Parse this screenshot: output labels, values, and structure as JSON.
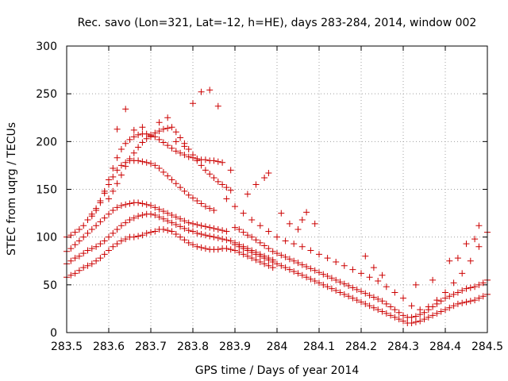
{
  "chart_data": {
    "type": "scatter",
    "title": "Rec. savo (Lon=321, Lat=-12, h=HE), days 283-284, 2014, window 002",
    "xlabel": "GPS time / Days of year 2014",
    "ylabel": "STEC from uqrg / TECUs",
    "xlim": [
      283.5,
      284.5
    ],
    "ylim": [
      0,
      300
    ],
    "x_ticks": [
      "283.5",
      "283.6",
      "283.7",
      "283.8",
      "283.9",
      "284",
      "284.1",
      "284.2",
      "284.3",
      "284.4",
      "284.5"
    ],
    "y_ticks": [
      "0",
      "50",
      "100",
      "150",
      "200",
      "250",
      "300"
    ],
    "grid": true,
    "marker": "+",
    "color": "#cc0000",
    "series": [
      {
        "x": [
          283.5,
          283.51,
          283.52,
          283.53,
          283.54,
          283.55,
          283.56,
          283.57,
          283.58,
          283.59,
          283.6,
          283.61,
          283.62,
          283.63,
          283.64,
          283.65,
          283.66,
          283.67,
          283.68,
          283.69,
          283.7,
          283.71,
          283.72,
          283.73,
          283.74,
          283.75,
          283.76,
          283.77,
          283.78,
          283.79,
          283.8,
          283.81,
          283.82,
          283.83,
          283.84,
          283.85,
          283.86,
          283.87,
          283.88,
          283.89,
          283.9,
          283.91,
          283.92,
          283.93,
          283.94,
          283.95,
          283.96,
          283.97,
          283.98,
          283.99
        ],
        "y": [
          58,
          60,
          62,
          65,
          68,
          70,
          72,
          75,
          78,
          82,
          86,
          90,
          93,
          96,
          98,
          100,
          100,
          101,
          102,
          104,
          105,
          106,
          108,
          108,
          107,
          106,
          103,
          100,
          97,
          94,
          92,
          90,
          89,
          88,
          87,
          87,
          87,
          88,
          88,
          87,
          86,
          84,
          82,
          80,
          78,
          76,
          74,
          72,
          70,
          68
        ]
      },
      {
        "x": [
          283.5,
          283.51,
          283.52,
          283.53,
          283.54,
          283.55,
          283.56,
          283.57,
          283.58,
          283.59,
          283.6,
          283.61,
          283.62,
          283.63,
          283.64,
          283.65,
          283.66,
          283.67,
          283.68,
          283.69,
          283.7,
          283.71,
          283.72,
          283.73,
          283.74,
          283.75,
          283.76,
          283.77,
          283.78,
          283.79,
          283.8,
          283.81,
          283.82,
          283.83,
          283.84,
          283.85,
          283.86,
          283.87,
          283.88,
          283.89,
          283.9,
          283.91,
          283.92,
          283.93,
          283.94,
          283.95,
          283.96,
          283.97,
          283.98,
          283.99
        ],
        "y": [
          72,
          75,
          78,
          80,
          83,
          86,
          88,
          90,
          93,
          96,
          100,
          104,
          108,
          112,
          115,
          118,
          120,
          122,
          123,
          124,
          124,
          123,
          121,
          119,
          117,
          115,
          113,
          111,
          109,
          107,
          106,
          104,
          103,
          102,
          101,
          100,
          99,
          98,
          97,
          96,
          94,
          92,
          90,
          88,
          86,
          84,
          82,
          80,
          78,
          76
        ]
      },
      {
        "x": [
          283.5,
          283.51,
          283.52,
          283.53,
          283.54,
          283.55,
          283.56,
          283.57,
          283.58,
          283.59,
          283.6,
          283.61,
          283.62,
          283.63,
          283.64,
          283.65,
          283.66,
          283.67,
          283.68,
          283.69,
          283.7,
          283.71,
          283.72,
          283.73,
          283.74,
          283.75,
          283.76,
          283.77,
          283.78,
          283.79,
          283.8,
          283.81,
          283.82,
          283.83,
          283.84,
          283.85,
          283.86,
          283.87,
          283.88
        ],
        "y": [
          85,
          88,
          92,
          96,
          100,
          104,
          108,
          112,
          116,
          120,
          124,
          128,
          131,
          133,
          134,
          135,
          136,
          136,
          135,
          134,
          133,
          131,
          129,
          127,
          125,
          123,
          121,
          119,
          117,
          115,
          114,
          113,
          112,
          111,
          110,
          109,
          108,
          107,
          106
        ]
      },
      {
        "x": [
          283.5,
          283.51,
          283.52,
          283.53,
          283.54,
          283.55,
          283.56,
          283.57,
          283.58,
          283.59,
          283.6,
          283.61,
          283.62,
          283.63,
          283.64,
          283.65,
          283.66,
          283.67,
          283.68,
          283.69,
          283.7,
          283.71,
          283.72,
          283.73,
          283.74,
          283.75,
          283.76,
          283.77,
          283.78,
          283.79,
          283.8,
          283.81,
          283.82,
          283.83,
          283.84,
          283.85
        ],
        "y": [
          100,
          102,
          105,
          108,
          112,
          118,
          124,
          130,
          138,
          146,
          155,
          163,
          170,
          175,
          178,
          180,
          180,
          180,
          179,
          178,
          177,
          175,
          172,
          168,
          164,
          160,
          156,
          152,
          148,
          144,
          141,
          138,
          135,
          132,
          130,
          128
        ]
      },
      {
        "x": [
          283.55,
          283.56,
          283.57,
          283.58,
          283.59,
          283.6,
          283.61,
          283.62,
          283.63,
          283.64,
          283.65,
          283.66,
          283.67,
          283.68,
          283.69,
          283.7,
          283.71,
          283.72,
          283.73,
          283.74,
          283.75,
          283.76,
          283.77,
          283.78,
          283.79,
          283.8,
          283.81,
          283.82,
          283.83,
          283.84,
          283.85,
          283.86,
          283.87
        ],
        "y": [
          118,
          122,
          128,
          136,
          148,
          160,
          172,
          183,
          192,
          198,
          202,
          205,
          207,
          208,
          208,
          207,
          205,
          202,
          199,
          196,
          193,
          190,
          188,
          186,
          184,
          183,
          182,
          181,
          181,
          180,
          180,
          179,
          178
        ]
      },
      {
        "x": [
          283.6,
          283.61,
          283.62,
          283.63,
          283.64,
          283.65,
          283.66,
          283.67,
          283.68,
          283.69,
          283.7,
          283.71,
          283.72,
          283.73,
          283.74,
          283.75,
          283.76,
          283.77,
          283.78,
          283.79,
          283.8,
          283.81,
          283.82,
          283.83,
          283.84,
          283.85,
          283.86,
          283.87,
          283.88,
          283.89
        ],
        "y": [
          140,
          148,
          156,
          165,
          174,
          182,
          188,
          194,
          199,
          203,
          206,
          209,
          211,
          213,
          214,
          215,
          210,
          204,
          198,
          192,
          186,
          180,
          175,
          170,
          166,
          162,
          158,
          155,
          152,
          149
        ]
      },
      {
        "x": [
          283.62,
          283.64,
          283.66,
          283.68,
          283.7,
          283.72,
          283.74,
          283.76,
          283.78,
          283.8,
          283.82,
          283.84,
          283.86
        ],
        "y": [
          213,
          234,
          212,
          215,
          205,
          220,
          225,
          200,
          195,
          240,
          252,
          254,
          237
        ]
      },
      {
        "x": [
          283.9,
          283.91,
          283.92,
          283.93,
          283.94,
          283.95,
          283.96,
          283.97,
          283.98,
          283.99,
          284.0,
          284.01,
          284.02,
          284.03,
          284.04,
          284.05,
          284.06,
          284.07,
          284.08,
          284.09,
          284.1,
          284.11,
          284.12,
          284.13,
          284.14,
          284.15,
          284.16,
          284.17,
          284.18,
          284.19,
          284.2,
          284.21,
          284.22,
          284.23,
          284.24,
          284.25,
          284.26,
          284.27,
          284.28,
          284.29,
          284.3,
          284.31,
          284.32,
          284.33,
          284.34,
          284.35,
          284.36,
          284.37,
          284.38,
          284.39,
          284.4,
          284.41,
          284.42,
          284.43,
          284.44,
          284.45,
          284.46,
          284.47,
          284.48,
          284.49,
          284.5
        ],
        "y": [
          92,
          90,
          88,
          86,
          84,
          82,
          80,
          78,
          76,
          74,
          72,
          70,
          68,
          66,
          64,
          62,
          60,
          58,
          56,
          54,
          52,
          50,
          48,
          46,
          44,
          42,
          40,
          38,
          36,
          34,
          32,
          30,
          28,
          26,
          24,
          22,
          20,
          18,
          16,
          14,
          12,
          10,
          10,
          11,
          12,
          14,
          16,
          18,
          20,
          22,
          24,
          26,
          28,
          30,
          31,
          32,
          33,
          34,
          36,
          38,
          40
        ]
      },
      {
        "x": [
          283.9,
          283.91,
          283.92,
          283.93,
          283.94,
          283.95,
          283.96,
          283.97,
          283.98,
          283.99,
          284.0,
          284.01,
          284.02,
          284.03,
          284.04,
          284.05,
          284.06,
          284.07,
          284.08,
          284.09,
          284.1,
          284.11,
          284.12,
          284.13,
          284.14,
          284.15,
          284.16,
          284.17,
          284.18,
          284.19,
          284.2,
          284.21,
          284.22,
          284.23,
          284.24,
          284.25,
          284.26,
          284.27,
          284.28,
          284.29,
          284.3,
          284.31,
          284.32,
          284.33,
          284.34,
          284.35,
          284.36,
          284.37,
          284.38,
          284.39,
          284.4,
          284.41,
          284.42,
          284.43,
          284.44,
          284.45,
          284.46,
          284.47,
          284.48,
          284.49,
          284.5
        ],
        "y": [
          110,
          108,
          105,
          102,
          100,
          97,
          94,
          91,
          88,
          85,
          83,
          81,
          79,
          77,
          75,
          73,
          71,
          69,
          67,
          65,
          63,
          61,
          59,
          57,
          55,
          53,
          51,
          49,
          47,
          45,
          43,
          41,
          39,
          37,
          35,
          33,
          30,
          27,
          24,
          21,
          18,
          16,
          16,
          17,
          19,
          21,
          24,
          27,
          30,
          33,
          36,
          38,
          40,
          42,
          44,
          46,
          47,
          48,
          50,
          52,
          55
        ]
      },
      {
        "x": [
          283.88,
          283.9,
          283.92,
          283.94,
          283.96,
          283.98,
          284.0,
          284.02,
          284.04,
          284.06,
          284.08,
          284.1,
          284.12,
          284.14,
          284.16,
          284.18,
          284.2,
          284.22,
          284.24,
          284.26,
          284.28,
          284.3,
          284.32,
          284.34,
          284.36,
          284.38,
          284.4,
          284.42,
          284.44,
          284.46,
          284.48,
          284.5
        ],
        "y": [
          140,
          132,
          125,
          118,
          112,
          106,
          100,
          96,
          93,
          90,
          86,
          82,
          78,
          74,
          70,
          66,
          62,
          58,
          54,
          48,
          42,
          36,
          28,
          24,
          27,
          34,
          42,
          52,
          62,
          75,
          90,
          105
        ]
      },
      {
        "x": [
          283.89,
          283.93,
          283.95,
          283.97,
          283.98,
          284.01,
          284.03,
          284.05,
          284.06,
          284.07,
          284.09,
          284.21,
          284.23,
          284.25,
          284.33,
          284.37,
          284.41,
          284.43,
          284.45,
          284.47,
          284.48
        ],
        "y": [
          170,
          145,
          155,
          162,
          167,
          125,
          114,
          108,
          118,
          126,
          114,
          80,
          68,
          60,
          50,
          55,
          75,
          78,
          93,
          98,
          112
        ]
      }
    ]
  }
}
